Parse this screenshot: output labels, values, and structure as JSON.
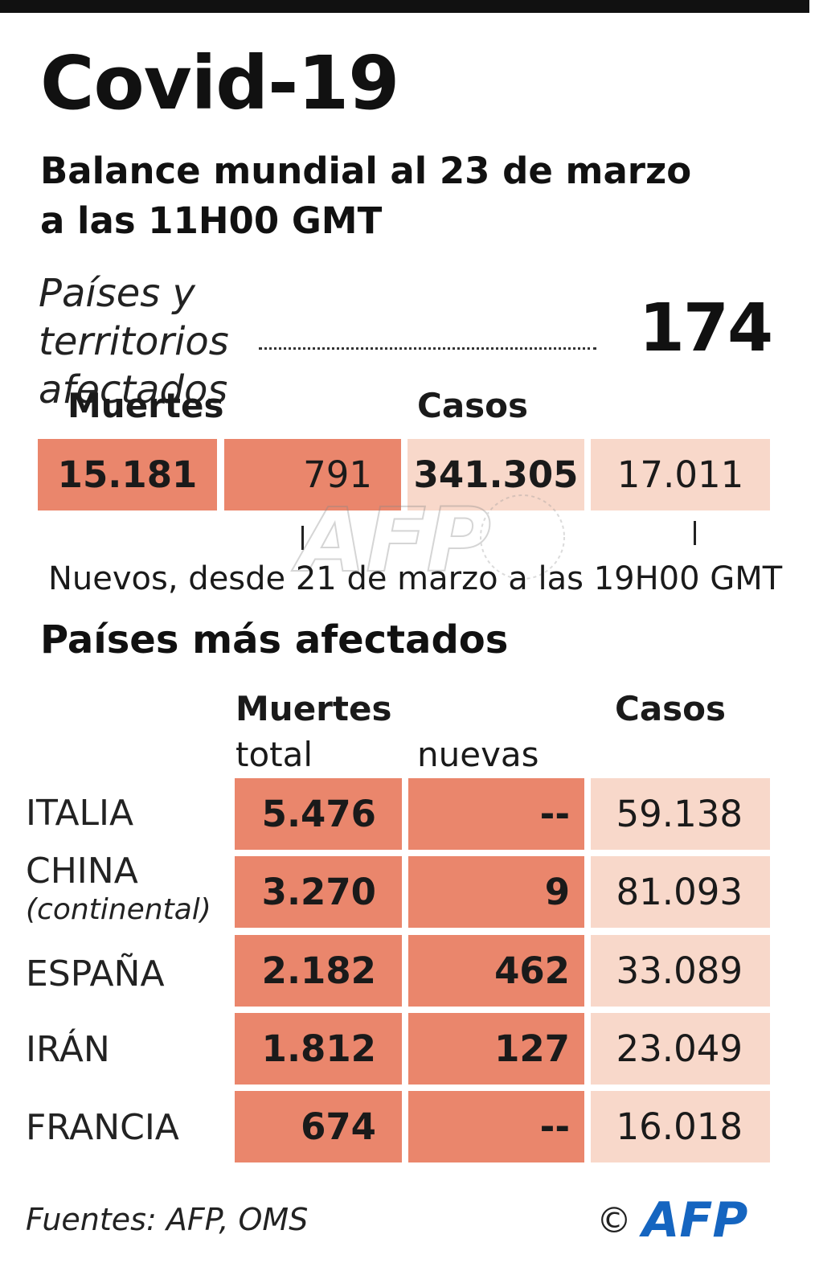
{
  "header": {
    "title": "Covid-19",
    "subtitle_line1": "Balance mundial al 23 de marzo",
    "subtitle_line2": "a las 11H00 GMT"
  },
  "summary": {
    "territories_line1": "Países y territorios",
    "territories_line2": "afectados",
    "territories_count": "174",
    "deaths_label": "Muertes",
    "cases_label": "Casos",
    "deaths_total": "15.181",
    "deaths_new": "791",
    "cases_total": "341.305",
    "cases_new": "17.011",
    "new_note": "Nuevos, desde 21 de marzo a las 19H00 GMT"
  },
  "countries_section": {
    "title": "Países más afectados",
    "head_deaths": "Muertes",
    "head_total": "total",
    "head_new": "nuevas",
    "head_cases": "Casos"
  },
  "chart_data": {
    "type": "table",
    "title": "Covid-19",
    "subtitle": "Balance mundial al 23 de marzo a las 11H00 GMT",
    "columns": [
      "Muertes total",
      "nuevas",
      "Casos"
    ],
    "rows": [
      {
        "country": "ITALIA",
        "note": "",
        "deaths_total": "5.476",
        "deaths_new": "--",
        "cases": "59.138"
      },
      {
        "country": "CHINA",
        "note": "(continental)",
        "deaths_total": "3.270",
        "deaths_new": "9",
        "cases": "81.093"
      },
      {
        "country": "ESPAÑA",
        "note": "",
        "deaths_total": "2.182",
        "deaths_new": "462",
        "cases": "33.089"
      },
      {
        "country": "IRÁN",
        "note": "",
        "deaths_total": "1.812",
        "deaths_new": "127",
        "cases": "23.049"
      },
      {
        "country": "FRANCIA",
        "note": "",
        "deaths_total": "674",
        "deaths_new": "--",
        "cases": "16.018"
      }
    ]
  },
  "footer": {
    "sources": "Fuentes: AFP, OMS",
    "copyright": "©",
    "logo_text": "AFP"
  },
  "colors": {
    "deaths": "#ea866c",
    "cases": "#f8d8ca",
    "brand": "#1565c0"
  }
}
